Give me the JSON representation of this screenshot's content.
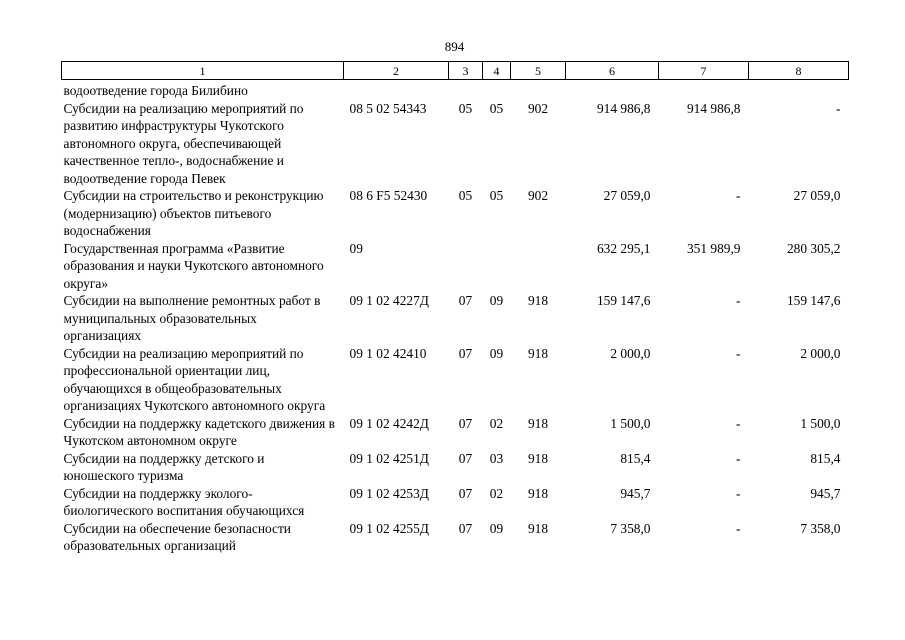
{
  "page_number": "894",
  "table": {
    "header": [
      "1",
      "2",
      "3",
      "4",
      "5",
      "6",
      "7",
      "8"
    ],
    "rows": [
      {
        "name": "водоотведение города Билибино",
        "code": "",
        "col3": "",
        "col4": "",
        "col5": "",
        "col6": "",
        "col7": "",
        "col8": ""
      },
      {
        "name": "Субсидии на реализацию мероприятий по развитию инфраструктуры Чукотского автономного округа, обеспечивающей качественное тепло-, водоснабжение и водоотведение города Певек",
        "code": "08 5 02 54343",
        "col3": "05",
        "col4": "05",
        "col5": "902",
        "col6": "914 986,8",
        "col7": "914 986,8",
        "col8": "-"
      },
      {
        "name": "Субсидии на строительство и реконструкцию (модернизацию) объектов питьевого водоснабжения",
        "code": "08 6 F5 52430",
        "col3": "05",
        "col4": "05",
        "col5": "902",
        "col6": "27 059,0",
        "col7": "-",
        "col8": "27 059,0"
      },
      {
        "name": "Государственная программа «Развитие образования и науки Чукотского автономного округа»",
        "code": "09",
        "col3": "",
        "col4": "",
        "col5": "",
        "col6": "632 295,1",
        "col7": "351 989,9",
        "col8": "280 305,2"
      },
      {
        "name": "Субсидии на выполнение ремонтных работ в муниципальных образовательных организациях",
        "code": "09 1 02 4227Д",
        "col3": "07",
        "col4": "09",
        "col5": "918",
        "col6": "159 147,6",
        "col7": "-",
        "col8": "159 147,6"
      },
      {
        "name": "Субсидии на реализацию мероприятий по профессиональной ориентации лиц, обучающихся в общеобразовательных организациях Чукотского автономного округа",
        "code": "09 1 02 42410",
        "col3": "07",
        "col4": "09",
        "col5": "918",
        "col6": "2 000,0",
        "col7": "-",
        "col8": "2 000,0"
      },
      {
        "name": "Субсидии на поддержку кадетского движения в Чукотском автономном округе",
        "code": "09 1 02 4242Д",
        "col3": "07",
        "col4": "02",
        "col5": "918",
        "col6": "1 500,0",
        "col7": "-",
        "col8": "1 500,0"
      },
      {
        "name": "Субсидии на поддержку детского и юношеского туризма",
        "code": "09 1 02 4251Д",
        "col3": "07",
        "col4": "03",
        "col5": "918",
        "col6": "815,4",
        "col7": "-",
        "col8": "815,4"
      },
      {
        "name": "Субсидии на поддержку эколого-биологического воспитания обучающихся",
        "code": "09 1 02 4253Д",
        "col3": "07",
        "col4": "02",
        "col5": "918",
        "col6": "945,7",
        "col7": "-",
        "col8": "945,7"
      },
      {
        "name": "Субсидии на обеспечение безопасности образовательных организаций",
        "code": "09 1 02 4255Д",
        "col3": "07",
        "col4": "09",
        "col5": "918",
        "col6": "7 358,0",
        "col7": "-",
        "col8": "7 358,0"
      }
    ]
  }
}
